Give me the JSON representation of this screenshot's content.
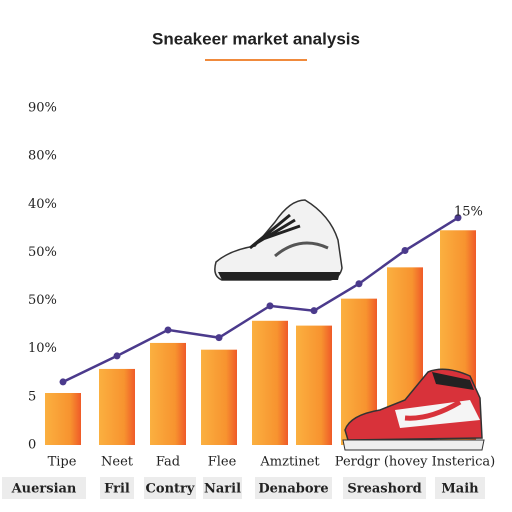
{
  "chart_data": {
    "type": "bar_line",
    "title": "Sneakeer market analysis",
    "y_labels": [
      "0",
      "5",
      "10%",
      "50%",
      "50%",
      "40%",
      "80%",
      "90%"
    ],
    "ylim": [
      0,
      7
    ],
    "categories": [
      "Tipe",
      "Neet",
      "Fad",
      "Flee",
      "Amztinet",
      null,
      "Perdgr (hovey Insterica)",
      null,
      null
    ],
    "group_labels": [
      "Auersian",
      "Fril",
      "Contry",
      "Naril",
      "Denabore",
      "Sreashord",
      "Maih"
    ],
    "series": [
      {
        "type": "bar",
        "color": "#f9a23a",
        "values": [
          1.08,
          1.58,
          2.12,
          1.98,
          2.58,
          2.48,
          3.04,
          3.69,
          4.46
        ]
      },
      {
        "type": "line",
        "color": "#4b3a8c",
        "values": [
          1.31,
          1.85,
          2.39,
          2.23,
          2.89,
          2.79,
          3.35,
          4.04,
          4.72
        ]
      }
    ],
    "annotation": "15%"
  }
}
